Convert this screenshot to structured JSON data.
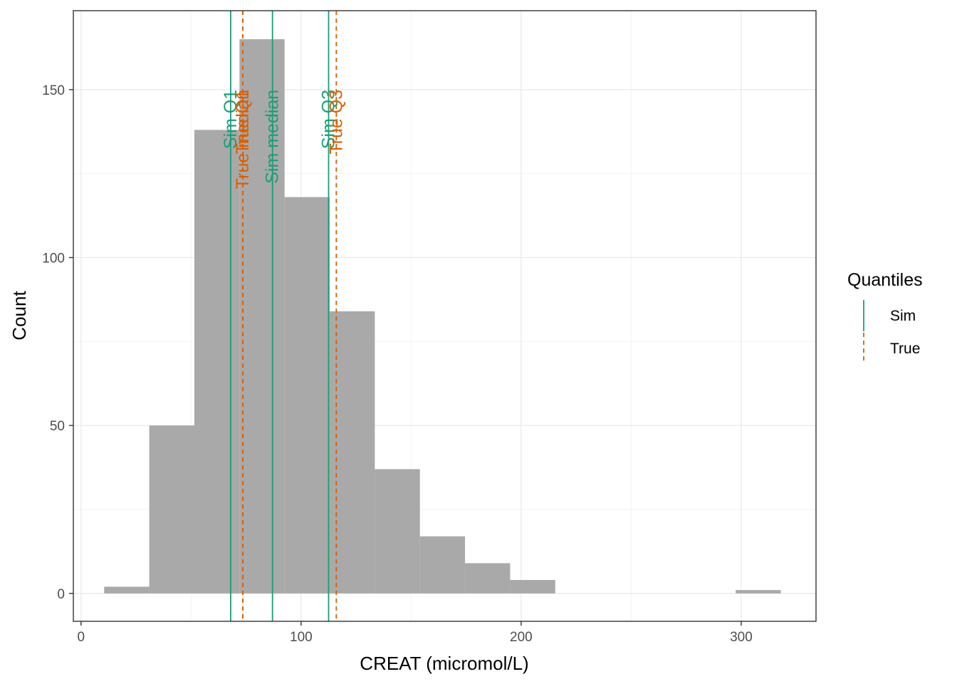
{
  "chart_data": {
    "type": "bar",
    "subtype": "histogram",
    "title": "",
    "xlabel": "CREAT (micromol/L)",
    "ylabel": "Count",
    "xlim": [
      -3.5,
      334
    ],
    "ylim": [
      -8.3,
      173.5
    ],
    "x_ticks": [
      0,
      100,
      200,
      300
    ],
    "y_ticks": [
      0,
      50,
      100,
      150
    ],
    "grid": true,
    "bar_color": "#a9a9a9",
    "bins": [
      {
        "x0": 10.5,
        "x1": 31,
        "count": 2
      },
      {
        "x0": 31,
        "x1": 51.5,
        "count": 50
      },
      {
        "x0": 51.5,
        "x1": 72,
        "count": 138
      },
      {
        "x0": 72,
        "x1": 92.5,
        "count": 165
      },
      {
        "x0": 92.5,
        "x1": 113,
        "count": 118
      },
      {
        "x0": 113,
        "x1": 133.5,
        "count": 84
      },
      {
        "x0": 133.5,
        "x1": 154,
        "count": 37
      },
      {
        "x0": 154,
        "x1": 174.5,
        "count": 17
      },
      {
        "x0": 174.5,
        "x1": 195,
        "count": 9
      },
      {
        "x0": 195,
        "x1": 215.5,
        "count": 4
      },
      {
        "x0": 297.5,
        "x1": 318,
        "count": 1
      }
    ],
    "quantile_lines": [
      {
        "label": "Sim Q1",
        "x": 68,
        "series": "Sim"
      },
      {
        "label": "True Q1",
        "x": 73.5,
        "series": "True"
      },
      {
        "label": "Sim median",
        "x": 87,
        "series": "Sim"
      },
      {
        "label": "True median",
        "x": 73.5,
        "series": "True"
      },
      {
        "label": "Sim Q3",
        "x": 112.5,
        "series": "Sim"
      },
      {
        "label": "True Q3",
        "x": 116,
        "series": "True"
      }
    ],
    "series": [
      {
        "name": "Sim",
        "color": "#1b9e77",
        "linetype": "solid"
      },
      {
        "name": "True",
        "color": "#d95f02",
        "linetype": "dashed"
      }
    ],
    "legend": {
      "title": "Quantiles",
      "placement": "right"
    }
  }
}
